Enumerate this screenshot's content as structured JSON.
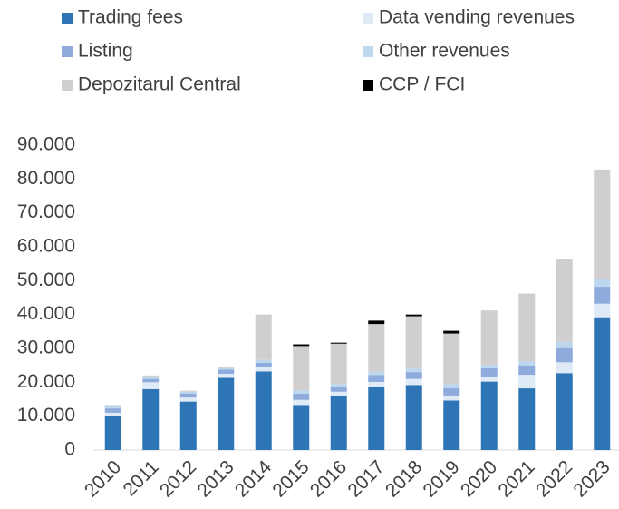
{
  "chart_data": {
    "type": "stacked_bar",
    "categories": [
      "2010",
      "2011",
      "2012",
      "2013",
      "2014",
      "2015",
      "2016",
      "2017",
      "2018",
      "2019",
      "2020",
      "2021",
      "2022",
      "2023"
    ],
    "series": [
      {
        "name": "Trading fees",
        "color": "#2e75b6",
        "values": [
          10200,
          18000,
          14300,
          21300,
          23200,
          13300,
          15900,
          18600,
          19200,
          14600,
          20200,
          18200,
          22700,
          39200
        ]
      },
      {
        "name": "Data vending revenues",
        "color": "#deebf7",
        "values": [
          800,
          2000,
          1200,
          1200,
          1200,
          1500,
          1300,
          1500,
          1800,
          1500,
          1500,
          4000,
          3200,
          4000
        ]
      },
      {
        "name": "Listing",
        "color": "#8faadc",
        "values": [
          1300,
          1000,
          1200,
          1200,
          1300,
          1800,
          1400,
          2000,
          2000,
          2200,
          2400,
          2800,
          4200,
          5000
        ]
      },
      {
        "name": "Other revenues",
        "color": "#bdd7ee",
        "values": [
          700,
          700,
          500,
          500,
          900,
          1000,
          900,
          1100,
          1000,
          1100,
          1100,
          1200,
          1800,
          2200
        ]
      },
      {
        "name": "Depozitarul Central",
        "color": "#d0cece",
        "values": [
          300,
          300,
          300,
          300,
          13400,
          13100,
          11900,
          14000,
          15500,
          15000,
          16000,
          20000,
          24600,
          32400
        ]
      },
      {
        "name": "CCP / FCI",
        "color": "#000000",
        "values": [
          0,
          0,
          0,
          0,
          0,
          500,
          300,
          1000,
          500,
          800,
          0,
          0,
          0,
          0
        ]
      }
    ],
    "ylim": [
      0,
      90000
    ],
    "yticks": [
      0,
      {
        "value": 10000,
        "label": "10.000"
      },
      {
        "value": 20000,
        "label": "20.000"
      },
      {
        "value": 30000,
        "label": "30.000"
      },
      {
        "value": 40000,
        "label": "40.000"
      },
      {
        "value": 50000,
        "label": "50.000"
      },
      {
        "value": 60000,
        "label": "60.000"
      },
      {
        "value": 70000,
        "label": "70.000"
      },
      {
        "value": 80000,
        "label": "80.000"
      },
      {
        "value": 90000,
        "label": "90.000"
      }
    ],
    "legend": "top"
  }
}
